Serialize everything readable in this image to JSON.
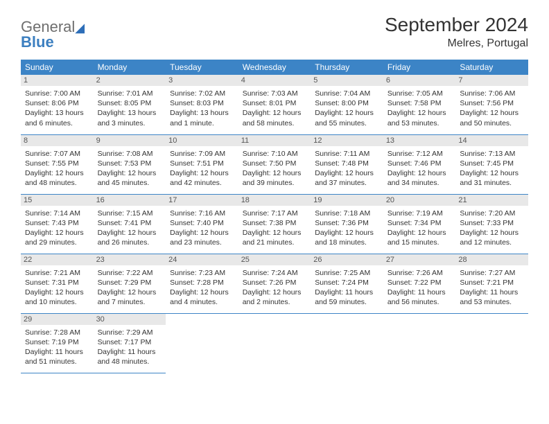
{
  "logo": {
    "word1": "General",
    "word2": "Blue"
  },
  "title": "September 2024",
  "location": "Melres, Portugal",
  "weekdays": [
    "Sunday",
    "Monday",
    "Tuesday",
    "Wednesday",
    "Thursday",
    "Friday",
    "Saturday"
  ],
  "colors": {
    "header_bg": "#3c84c6",
    "header_text": "#ffffff",
    "daynum_bg": "#e8e8e8",
    "divider": "#3c84c6",
    "logo_gray": "#6e6e6e",
    "logo_blue": "#3c7fc0",
    "body_text": "#333333"
  },
  "weeks": [
    [
      {
        "n": "1",
        "sunrise": "Sunrise: 7:00 AM",
        "sunset": "Sunset: 8:06 PM",
        "daylight": "Daylight: 13 hours and 6 minutes."
      },
      {
        "n": "2",
        "sunrise": "Sunrise: 7:01 AM",
        "sunset": "Sunset: 8:05 PM",
        "daylight": "Daylight: 13 hours and 3 minutes."
      },
      {
        "n": "3",
        "sunrise": "Sunrise: 7:02 AM",
        "sunset": "Sunset: 8:03 PM",
        "daylight": "Daylight: 13 hours and 1 minute."
      },
      {
        "n": "4",
        "sunrise": "Sunrise: 7:03 AM",
        "sunset": "Sunset: 8:01 PM",
        "daylight": "Daylight: 12 hours and 58 minutes."
      },
      {
        "n": "5",
        "sunrise": "Sunrise: 7:04 AM",
        "sunset": "Sunset: 8:00 PM",
        "daylight": "Daylight: 12 hours and 55 minutes."
      },
      {
        "n": "6",
        "sunrise": "Sunrise: 7:05 AM",
        "sunset": "Sunset: 7:58 PM",
        "daylight": "Daylight: 12 hours and 53 minutes."
      },
      {
        "n": "7",
        "sunrise": "Sunrise: 7:06 AM",
        "sunset": "Sunset: 7:56 PM",
        "daylight": "Daylight: 12 hours and 50 minutes."
      }
    ],
    [
      {
        "n": "8",
        "sunrise": "Sunrise: 7:07 AM",
        "sunset": "Sunset: 7:55 PM",
        "daylight": "Daylight: 12 hours and 48 minutes."
      },
      {
        "n": "9",
        "sunrise": "Sunrise: 7:08 AM",
        "sunset": "Sunset: 7:53 PM",
        "daylight": "Daylight: 12 hours and 45 minutes."
      },
      {
        "n": "10",
        "sunrise": "Sunrise: 7:09 AM",
        "sunset": "Sunset: 7:51 PM",
        "daylight": "Daylight: 12 hours and 42 minutes."
      },
      {
        "n": "11",
        "sunrise": "Sunrise: 7:10 AM",
        "sunset": "Sunset: 7:50 PM",
        "daylight": "Daylight: 12 hours and 39 minutes."
      },
      {
        "n": "12",
        "sunrise": "Sunrise: 7:11 AM",
        "sunset": "Sunset: 7:48 PM",
        "daylight": "Daylight: 12 hours and 37 minutes."
      },
      {
        "n": "13",
        "sunrise": "Sunrise: 7:12 AM",
        "sunset": "Sunset: 7:46 PM",
        "daylight": "Daylight: 12 hours and 34 minutes."
      },
      {
        "n": "14",
        "sunrise": "Sunrise: 7:13 AM",
        "sunset": "Sunset: 7:45 PM",
        "daylight": "Daylight: 12 hours and 31 minutes."
      }
    ],
    [
      {
        "n": "15",
        "sunrise": "Sunrise: 7:14 AM",
        "sunset": "Sunset: 7:43 PM",
        "daylight": "Daylight: 12 hours and 29 minutes."
      },
      {
        "n": "16",
        "sunrise": "Sunrise: 7:15 AM",
        "sunset": "Sunset: 7:41 PM",
        "daylight": "Daylight: 12 hours and 26 minutes."
      },
      {
        "n": "17",
        "sunrise": "Sunrise: 7:16 AM",
        "sunset": "Sunset: 7:40 PM",
        "daylight": "Daylight: 12 hours and 23 minutes."
      },
      {
        "n": "18",
        "sunrise": "Sunrise: 7:17 AM",
        "sunset": "Sunset: 7:38 PM",
        "daylight": "Daylight: 12 hours and 21 minutes."
      },
      {
        "n": "19",
        "sunrise": "Sunrise: 7:18 AM",
        "sunset": "Sunset: 7:36 PM",
        "daylight": "Daylight: 12 hours and 18 minutes."
      },
      {
        "n": "20",
        "sunrise": "Sunrise: 7:19 AM",
        "sunset": "Sunset: 7:34 PM",
        "daylight": "Daylight: 12 hours and 15 minutes."
      },
      {
        "n": "21",
        "sunrise": "Sunrise: 7:20 AM",
        "sunset": "Sunset: 7:33 PM",
        "daylight": "Daylight: 12 hours and 12 minutes."
      }
    ],
    [
      {
        "n": "22",
        "sunrise": "Sunrise: 7:21 AM",
        "sunset": "Sunset: 7:31 PM",
        "daylight": "Daylight: 12 hours and 10 minutes."
      },
      {
        "n": "23",
        "sunrise": "Sunrise: 7:22 AM",
        "sunset": "Sunset: 7:29 PM",
        "daylight": "Daylight: 12 hours and 7 minutes."
      },
      {
        "n": "24",
        "sunrise": "Sunrise: 7:23 AM",
        "sunset": "Sunset: 7:28 PM",
        "daylight": "Daylight: 12 hours and 4 minutes."
      },
      {
        "n": "25",
        "sunrise": "Sunrise: 7:24 AM",
        "sunset": "Sunset: 7:26 PM",
        "daylight": "Daylight: 12 hours and 2 minutes."
      },
      {
        "n": "26",
        "sunrise": "Sunrise: 7:25 AM",
        "sunset": "Sunset: 7:24 PM",
        "daylight": "Daylight: 11 hours and 59 minutes."
      },
      {
        "n": "27",
        "sunrise": "Sunrise: 7:26 AM",
        "sunset": "Sunset: 7:22 PM",
        "daylight": "Daylight: 11 hours and 56 minutes."
      },
      {
        "n": "28",
        "sunrise": "Sunrise: 7:27 AM",
        "sunset": "Sunset: 7:21 PM",
        "daylight": "Daylight: 11 hours and 53 minutes."
      }
    ],
    [
      {
        "n": "29",
        "sunrise": "Sunrise: 7:28 AM",
        "sunset": "Sunset: 7:19 PM",
        "daylight": "Daylight: 11 hours and 51 minutes."
      },
      {
        "n": "30",
        "sunrise": "Sunrise: 7:29 AM",
        "sunset": "Sunset: 7:17 PM",
        "daylight": "Daylight: 11 hours and 48 minutes."
      },
      null,
      null,
      null,
      null,
      null
    ]
  ]
}
